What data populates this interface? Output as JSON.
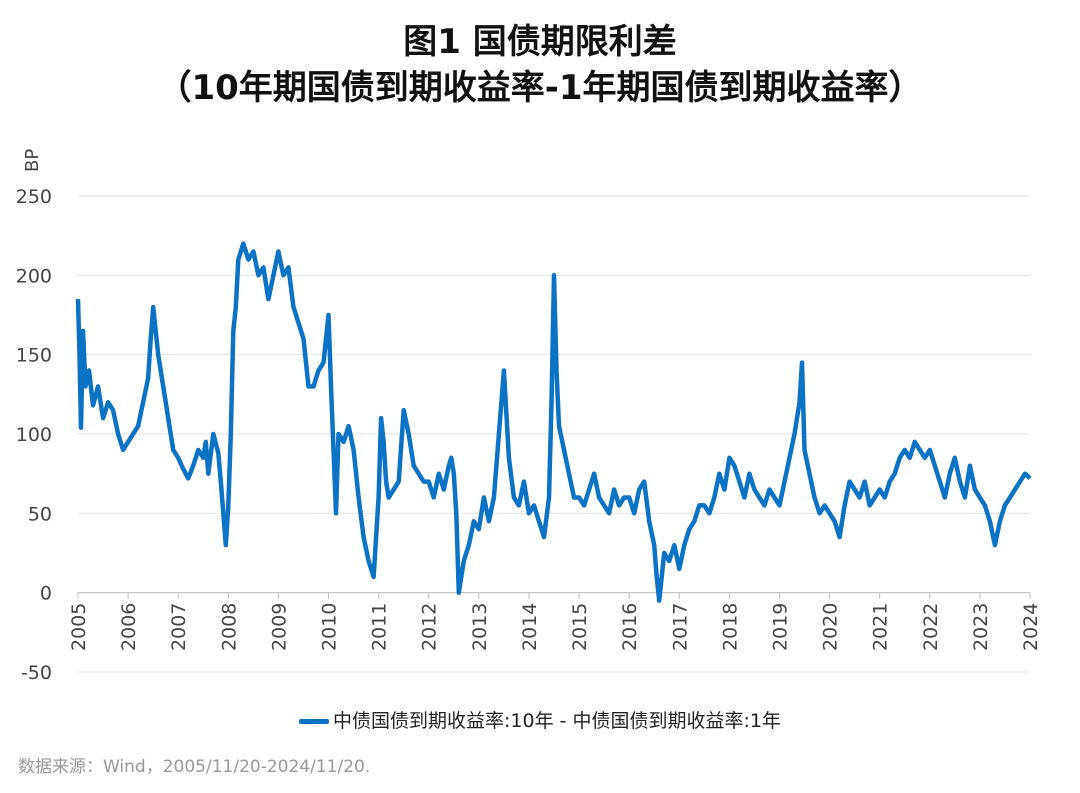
{
  "header": {
    "title": "图1  国债期限利差",
    "subtitle": "（10年期国债到期收益率-1年期国债到期收益率）"
  },
  "source": "数据来源：Wind，2005/11/20-2024/11/20.",
  "chart_data": {
    "type": "line",
    "ylabel": "BP",
    "xlabel": "",
    "ylim": [
      -50,
      250
    ],
    "yticks": [
      250,
      200,
      150,
      100,
      50,
      0,
      -50
    ],
    "xlim": [
      2005,
      2024
    ],
    "xticks": [
      "2005",
      "2006",
      "2007",
      "2008",
      "2009",
      "2010",
      "2011",
      "2012",
      "2013",
      "2014",
      "2015",
      "2016",
      "2017",
      "2018",
      "2019",
      "2020",
      "2021",
      "2022",
      "2023",
      "2024"
    ],
    "grid": true,
    "legend": "bottom",
    "color": "#0b72c4",
    "series": [
      {
        "name": "中债国债到期收益率:10年 - 中债国债到期收益率:1年",
        "x": [
          2005.0,
          2005.03,
          2005.06,
          2005.1,
          2005.15,
          2005.22,
          2005.3,
          2005.4,
          2005.5,
          2005.6,
          2005.7,
          2005.8,
          2005.9,
          2006.0,
          2006.1,
          2006.2,
          2006.3,
          2006.4,
          2006.45,
          2006.5,
          2006.55,
          2006.6,
          2006.65,
          2006.7,
          2006.8,
          2006.9,
          2007.0,
          2007.1,
          2007.2,
          2007.3,
          2007.4,
          2007.5,
          2007.55,
          2007.6,
          2007.7,
          2007.8,
          2007.85,
          2007.9,
          2007.95,
          2008.0,
          2008.05,
          2008.1,
          2008.15,
          2008.2,
          2008.3,
          2008.4,
          2008.5,
          2008.6,
          2008.7,
          2008.8,
          2008.9,
          2009.0,
          2009.1,
          2009.2,
          2009.3,
          2009.4,
          2009.5,
          2009.6,
          2009.7,
          2009.8,
          2009.9,
          2010.0,
          2010.05,
          2010.1,
          2010.15,
          2010.2,
          2010.3,
          2010.4,
          2010.5,
          2010.6,
          2010.7,
          2010.8,
          2010.9,
          2011.0,
          2011.05,
          2011.1,
          2011.15,
          2011.2,
          2011.3,
          2011.4,
          2011.5,
          2011.6,
          2011.7,
          2011.8,
          2011.9,
          2012.0,
          2012.1,
          2012.2,
          2012.3,
          2012.4,
          2012.45,
          2012.5,
          2012.55,
          2012.6,
          2012.7,
          2012.8,
          2012.9,
          2013.0,
          2013.1,
          2013.2,
          2013.3,
          2013.4,
          2013.5,
          2013.6,
          2013.7,
          2013.8,
          2013.9,
          2014.0,
          2014.1,
          2014.2,
          2014.3,
          2014.4,
          2014.45,
          2014.5,
          2014.55,
          2014.6,
          2014.7,
          2014.8,
          2014.9,
          2015.0,
          2015.1,
          2015.2,
          2015.3,
          2015.4,
          2015.5,
          2015.6,
          2015.7,
          2015.8,
          2015.9,
          2016.0,
          2016.1,
          2016.2,
          2016.3,
          2016.4,
          2016.5,
          2016.55,
          2016.6,
          2016.7,
          2016.8,
          2016.9,
          2017.0,
          2017.1,
          2017.2,
          2017.3,
          2017.4,
          2017.5,
          2017.6,
          2017.7,
          2017.8,
          2017.9,
          2018.0,
          2018.1,
          2018.2,
          2018.3,
          2018.4,
          2018.5,
          2018.6,
          2018.7,
          2018.8,
          2018.9,
          2019.0,
          2019.1,
          2019.2,
          2019.3,
          2019.4,
          2019.45,
          2019.5,
          2019.6,
          2019.7,
          2019.8,
          2019.9,
          2020.0,
          2020.1,
          2020.2,
          2020.3,
          2020.4,
          2020.5,
          2020.6,
          2020.7,
          2020.8,
          2020.9,
          2021.0,
          2021.1,
          2021.2,
          2021.3,
          2021.4,
          2021.5,
          2021.6,
          2021.7,
          2021.8,
          2021.9,
          2022.0,
          2022.1,
          2022.2,
          2022.3,
          2022.4,
          2022.5,
          2022.6,
          2022.7,
          2022.8,
          2022.9,
          2023.0,
          2023.1,
          2023.2,
          2023.3,
          2023.4,
          2023.5,
          2023.6,
          2023.7,
          2023.8,
          2023.9,
          2024.0
        ],
        "y": [
          185,
          150,
          104,
          165,
          130,
          140,
          118,
          130,
          110,
          120,
          115,
          100,
          90,
          95,
          100,
          105,
          120,
          135,
          160,
          180,
          165,
          150,
          140,
          130,
          110,
          90,
          85,
          78,
          72,
          80,
          90,
          85,
          95,
          75,
          100,
          88,
          70,
          50,
          30,
          55,
          100,
          165,
          180,
          210,
          220,
          210,
          215,
          200,
          205,
          185,
          200,
          215,
          200,
          205,
          180,
          170,
          160,
          130,
          130,
          140,
          145,
          175,
          130,
          90,
          50,
          100,
          95,
          105,
          90,
          60,
          35,
          20,
          10,
          60,
          110,
          95,
          70,
          60,
          65,
          70,
          115,
          100,
          80,
          75,
          70,
          70,
          60,
          75,
          65,
          80,
          85,
          75,
          50,
          0,
          20,
          30,
          45,
          40,
          60,
          45,
          60,
          100,
          140,
          85,
          60,
          55,
          70,
          50,
          55,
          45,
          35,
          60,
          120,
          200,
          140,
          105,
          90,
          75,
          60,
          60,
          55,
          65,
          75,
          60,
          55,
          50,
          65,
          55,
          60,
          60,
          50,
          65,
          70,
          45,
          30,
          10,
          -5,
          25,
          20,
          30,
          15,
          30,
          40,
          45,
          55,
          55,
          50,
          60,
          75,
          65,
          85,
          80,
          70,
          60,
          75,
          65,
          60,
          55,
          65,
          60,
          55,
          70,
          85,
          100,
          120,
          145,
          90,
          75,
          60,
          50,
          55,
          50,
          45,
          35,
          55,
          70,
          65,
          60,
          70,
          55,
          60,
          65,
          60,
          70,
          75,
          85,
          90,
          85,
          95,
          90,
          85,
          90,
          80,
          70,
          60,
          75,
          85,
          70,
          60,
          80,
          65,
          60,
          55,
          45,
          30,
          45,
          55,
          60,
          65,
          70,
          75,
          72
        ]
      }
    ]
  }
}
